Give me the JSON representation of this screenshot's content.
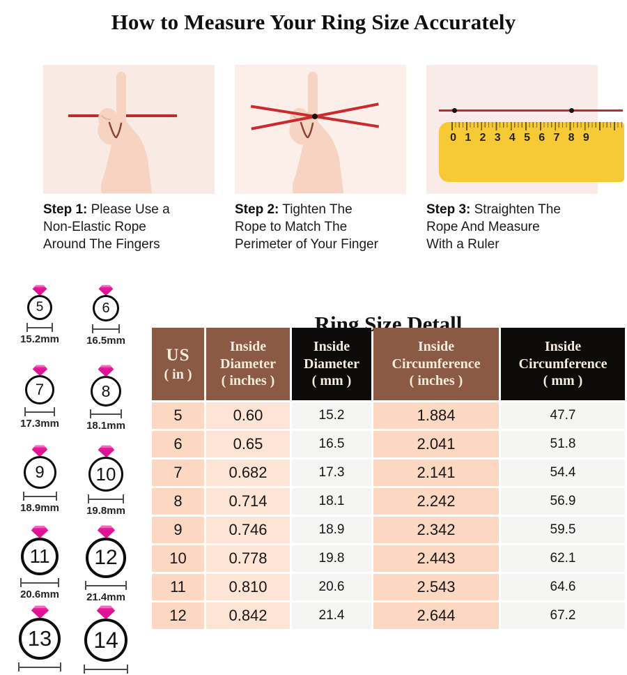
{
  "page_title": "How to Measure Your Ring Size Accurately",
  "steps": [
    {
      "label": "Step 1:",
      "text": " Please Use a\nNon-Elastic Rope\nAround The Fingers"
    },
    {
      "label": "Step 2:",
      "text": " Tighten The\nRope to Match The\nPerimeter of Your Finger"
    },
    {
      "label": "Step 3:",
      "text": " Straighten The\nRope And Measure\nWith a Ruler"
    }
  ],
  "ruler": {
    "numbers": [
      "0",
      "1",
      "2",
      "3",
      "4",
      "5",
      "6",
      "7",
      "8",
      "9"
    ]
  },
  "size_chart": {
    "title": "Ring Size Detall",
    "headers": [
      "US\n( in )",
      "Inside\nDiameter\n( inches )",
      "Inside\nDiameter\n( mm )",
      "Inside\nCircumference\n( inches )",
      "Inside\nCircumference\n( mm )"
    ],
    "rows": [
      [
        "5",
        "0.60",
        "15.2",
        "1.884",
        "47.7"
      ],
      [
        "6",
        "0.65",
        "16.5",
        "2.041",
        "51.8"
      ],
      [
        "7",
        "0.682",
        "17.3",
        "2.141",
        "54.4"
      ],
      [
        "8",
        "0.714",
        "18.1",
        "2.242",
        "56.9"
      ],
      [
        "9",
        "0.746",
        "18.9",
        "2.342",
        "59.5"
      ],
      [
        "10",
        "0.778",
        "19.8",
        "2.443",
        "62.1"
      ],
      [
        "11",
        "0.810",
        "20.6",
        "2.543",
        "64.6"
      ],
      [
        "12",
        "0.842",
        "21.4",
        "2.644",
        "67.2"
      ]
    ]
  },
  "rings": [
    {
      "size": "5",
      "mm": "15.2mm"
    },
    {
      "size": "6",
      "mm": "16.5mm"
    },
    {
      "size": "7",
      "mm": "17.3mm"
    },
    {
      "size": "8",
      "mm": "18.1mm"
    },
    {
      "size": "9",
      "mm": "18.9mm"
    },
    {
      "size": "10",
      "mm": "19.8mm"
    },
    {
      "size": "11",
      "mm": "20.6mm"
    },
    {
      "size": "12",
      "mm": "21.4mm"
    },
    {
      "size": "13",
      "mm": ""
    },
    {
      "size": "14",
      "mm": ""
    }
  ],
  "colors": {
    "rope_red": "#c02a2e",
    "ruler_yellow": "#f6ca35",
    "header_brown": "#8a5a45",
    "header_black": "#0d0b0a",
    "cell_peach": "#fcd7c1",
    "cell_peach_light": "#fde4d5",
    "cell_gray": "#f5f5f3",
    "gem_pink": "#e81a9c",
    "panel_pink": "#faeae4"
  }
}
